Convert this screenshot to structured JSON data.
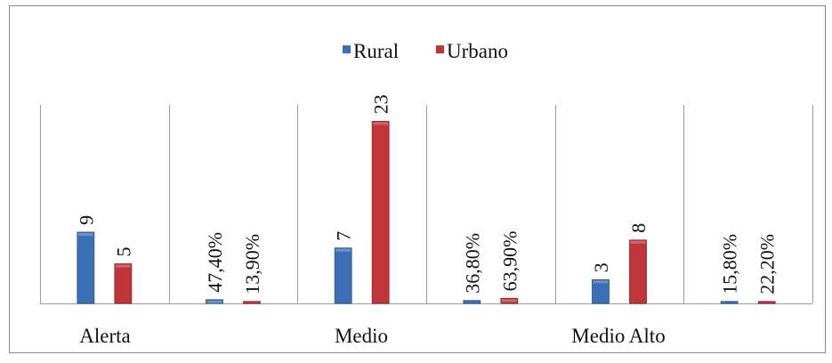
{
  "chart_data": {
    "type": "bar",
    "categories": [
      "Alerta",
      "",
      "Medio",
      "",
      "Medio Alto",
      ""
    ],
    "series": [
      {
        "name": "Rural",
        "color": "#3b6fb6",
        "values": [
          9,
          0.474,
          7,
          0.368,
          3,
          0.158
        ],
        "labels": [
          "9",
          "47,40%",
          "7",
          "36,80%",
          "3",
          "15,80%"
        ]
      },
      {
        "name": "Urbano",
        "color": "#c0353a",
        "values": [
          5,
          0.139,
          23,
          0.639,
          8,
          0.222
        ],
        "labels": [
          "5",
          "13,90%",
          "23",
          "63,90%",
          "8",
          "22,20%"
        ]
      }
    ],
    "ylim": [
      0,
      25
    ],
    "grid": false,
    "legend": "top-center",
    "title": "",
    "xlabel": "",
    "ylabel": ""
  }
}
